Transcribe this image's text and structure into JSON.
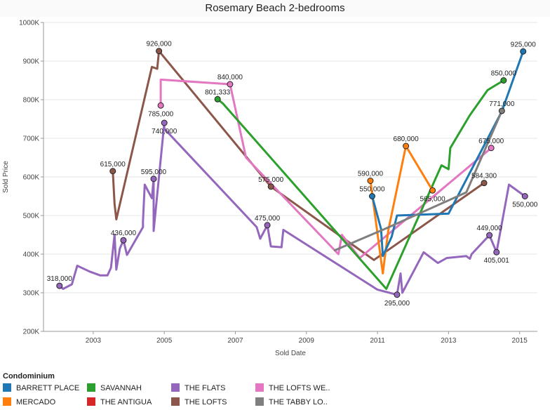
{
  "title": "Rosemary Beach 2-bedrooms",
  "legend": {
    "title": "Condominium",
    "items": [
      {
        "label": "BARRETT PLACE",
        "color": "#1f77b4"
      },
      {
        "label": "SAVANNAH",
        "color": "#2ca02c"
      },
      {
        "label": "THE FLATS",
        "color": "#9467bd"
      },
      {
        "label": "THE LOFTS WE..",
        "color": "#e377c2"
      },
      {
        "label": "MERCADO",
        "color": "#ff7f0e"
      },
      {
        "label": "THE ANTIGUA",
        "color": "#d62728"
      },
      {
        "label": "THE LOFTS",
        "color": "#8c564b"
      },
      {
        "label": "THE TABBY LO..",
        "color": "#7f7f7f"
      }
    ]
  },
  "chart_data": {
    "type": "line",
    "title": "Rosemary Beach 2-bedrooms",
    "xlabel": "Sold Date",
    "ylabel": "Sold Price",
    "x_ticks": [
      "2003",
      "2005",
      "2007",
      "2009",
      "2011",
      "2013",
      "2015"
    ],
    "y_ticks": [
      "200K",
      "300K",
      "400K",
      "500K",
      "600K",
      "700K",
      "800K",
      "900K",
      "1000K"
    ],
    "xlim": [
      2001.6,
      2015.5
    ],
    "ylim": [
      200000,
      1000000
    ],
    "grid": "horizontal",
    "series": [
      {
        "name": "THE FLATS",
        "color": "#9467bd",
        "points": [
          [
            2002.05,
            318000
          ],
          [
            2002.15,
            310000
          ],
          [
            2002.4,
            322000
          ],
          [
            2002.55,
            370000
          ],
          [
            2002.9,
            355000
          ],
          [
            2003.2,
            345000
          ],
          [
            2003.4,
            345000
          ],
          [
            2003.5,
            365000
          ],
          [
            2003.6,
            450000
          ],
          [
            2003.65,
            360000
          ],
          [
            2003.75,
            415000
          ],
          [
            2003.85,
            436000
          ],
          [
            2003.95,
            398000
          ],
          [
            2004.4,
            470000
          ],
          [
            2004.4,
            485000
          ],
          [
            2004.45,
            580000
          ],
          [
            2004.65,
            545000
          ],
          [
            2004.7,
            595000
          ],
          [
            2004.7,
            460000
          ],
          [
            2004.85,
            600000
          ],
          [
            2005.0,
            740000
          ],
          [
            2005.0,
            725000
          ],
          [
            2007.6,
            470000
          ],
          [
            2007.7,
            440000
          ],
          [
            2007.9,
            475000
          ],
          [
            2008.0,
            420000
          ],
          [
            2008.3,
            418000
          ],
          [
            2008.35,
            463000
          ],
          [
            2011.0,
            308000
          ],
          [
            2011.55,
            295000
          ],
          [
            2011.65,
            350000
          ],
          [
            2011.7,
            300000
          ],
          [
            2012.3,
            405000
          ],
          [
            2012.7,
            377000
          ],
          [
            2012.95,
            390000
          ],
          [
            2013.5,
            395000
          ],
          [
            2013.6,
            388000
          ],
          [
            2013.65,
            400000
          ],
          [
            2014.15,
            449000
          ],
          [
            2014.35,
            405001
          ],
          [
            2014.7,
            580000
          ],
          [
            2015.15,
            550000
          ]
        ]
      },
      {
        "name": "THE LOFTS",
        "color": "#8c564b",
        "points": [
          [
            2003.55,
            615000
          ],
          [
            2003.6,
            530000
          ],
          [
            2003.65,
            490000
          ],
          [
            2004.65,
            885000
          ],
          [
            2004.8,
            880000
          ],
          [
            2004.85,
            926000
          ],
          [
            2008.0,
            575000
          ],
          [
            2010.9,
            385000
          ],
          [
            2014.0,
            584300
          ]
        ]
      },
      {
        "name": "THE LOFTS WE..",
        "color": "#e377c2",
        "points": [
          [
            2004.9,
            785000
          ],
          [
            2004.9,
            852000
          ],
          [
            2006.85,
            840000
          ],
          [
            2007.3,
            650000
          ],
          [
            2009.9,
            400000
          ],
          [
            2010.0,
            450000
          ],
          [
            2010.5,
            390000
          ],
          [
            2014.2,
            675000
          ]
        ]
      },
      {
        "name": "SAVANNAH",
        "color": "#2ca02c",
        "points": [
          [
            2006.5,
            801333
          ],
          [
            2006.65,
            790000
          ],
          [
            2011.25,
            310000
          ],
          [
            2012.8,
            630000
          ],
          [
            2013.0,
            620000
          ],
          [
            2013.05,
            675000
          ],
          [
            2013.6,
            760000
          ],
          [
            2014.1,
            825000
          ],
          [
            2014.55,
            850000
          ]
        ]
      },
      {
        "name": "MERCADO",
        "color": "#ff7f0e",
        "points": [
          [
            2010.8,
            590000
          ],
          [
            2011.15,
            350000
          ],
          [
            2011.3,
            460000
          ],
          [
            2011.8,
            680000
          ],
          [
            2012.55,
            565000
          ]
        ]
      },
      {
        "name": "BARRETT PLACE",
        "color": "#1f77b4",
        "points": [
          [
            2010.85,
            550000
          ],
          [
            2011.1,
            465000
          ],
          [
            2011.15,
            395000
          ],
          [
            2011.4,
            445000
          ],
          [
            2011.55,
            500000
          ],
          [
            2013.0,
            505000
          ],
          [
            2014.5,
            770000
          ],
          [
            2015.1,
            925000
          ]
        ]
      },
      {
        "name": "THE TABBY LO..",
        "color": "#7f7f7f",
        "points": [
          [
            2009.8,
            410000
          ],
          [
            2011.2,
            465000
          ],
          [
            2013.5,
            560000
          ],
          [
            2014.5,
            771000
          ]
        ]
      }
    ],
    "markers": [
      {
        "series": "THE FLATS",
        "x": 2002.05,
        "y": 318000,
        "label": "318,000"
      },
      {
        "series": "THE FLATS",
        "x": 2003.85,
        "y": 436000,
        "label": "436,000"
      },
      {
        "series": "THE FLATS",
        "x": 2004.7,
        "y": 595000,
        "label": "595,000"
      },
      {
        "series": "THE FLATS",
        "x": 2005.0,
        "y": 740000,
        "label": "740,000"
      },
      {
        "series": "THE FLATS",
        "x": 2007.9,
        "y": 475000,
        "label": "475,000"
      },
      {
        "series": "THE FLATS",
        "x": 2011.55,
        "y": 295000,
        "label": "295,000"
      },
      {
        "series": "THE FLATS",
        "x": 2014.15,
        "y": 449000,
        "label": "449,000"
      },
      {
        "series": "THE FLATS",
        "x": 2014.35,
        "y": 405001,
        "label": "405,001"
      },
      {
        "series": "THE FLATS",
        "x": 2015.15,
        "y": 550000,
        "label": "550,000"
      },
      {
        "series": "THE LOFTS",
        "x": 2003.55,
        "y": 615000,
        "label": "615,000"
      },
      {
        "series": "THE LOFTS",
        "x": 2004.85,
        "y": 926000,
        "label": "926,000"
      },
      {
        "series": "THE LOFTS",
        "x": 2008.0,
        "y": 575000,
        "label": "575,000"
      },
      {
        "series": "THE LOFTS",
        "x": 2014.0,
        "y": 584300,
        "label": "584,300"
      },
      {
        "series": "THE LOFTS WE..",
        "x": 2004.9,
        "y": 785000,
        "label": "785,000"
      },
      {
        "series": "THE LOFTS WE..",
        "x": 2006.85,
        "y": 840000,
        "label": "840,000"
      },
      {
        "series": "THE LOFTS WE..",
        "x": 2014.2,
        "y": 675000,
        "label": "675,000"
      },
      {
        "series": "SAVANNAH",
        "x": 2006.5,
        "y": 801333,
        "label": "801,333"
      },
      {
        "series": "SAVANNAH",
        "x": 2014.55,
        "y": 850000,
        "label": "850,000"
      },
      {
        "series": "MERCADO",
        "x": 2010.8,
        "y": 590000,
        "label": "590,000"
      },
      {
        "series": "MERCADO",
        "x": 2011.8,
        "y": 680000,
        "label": "680,000"
      },
      {
        "series": "MERCADO",
        "x": 2012.55,
        "y": 565000,
        "label": "565,000"
      },
      {
        "series": "BARRETT PLACE",
        "x": 2010.85,
        "y": 550000,
        "label": "550,000"
      },
      {
        "series": "BARRETT PLACE",
        "x": 2015.1,
        "y": 925000,
        "label": "925,000"
      },
      {
        "series": "THE TABBY LO..",
        "x": 2014.5,
        "y": 771000,
        "label": "771,000"
      }
    ]
  }
}
